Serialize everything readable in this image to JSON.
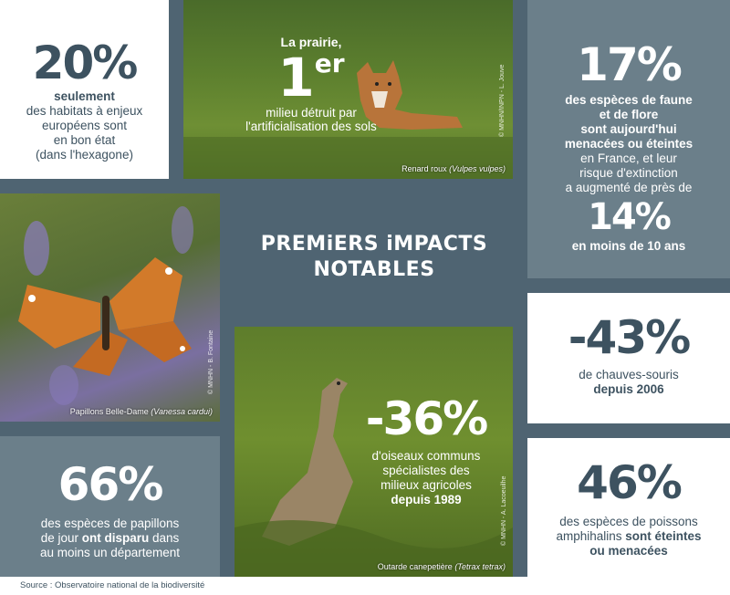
{
  "title": {
    "line1": "PREMiERS iMPACTS",
    "line2": "NOTABLES"
  },
  "source": "Source : Observatoire national de la biodiversité",
  "stat_habitats": {
    "value": "20%",
    "bold": "seulement",
    "l1": "des habitats à enjeux",
    "l2": "européens sont",
    "l3": "en bon état",
    "l4": "(dans l'hexagone)"
  },
  "prairie": {
    "l1": "La prairie,",
    "rank": "1",
    "rank_sup": "er",
    "l2": "milieu détruit par",
    "l3": "l'artificialisation des sols",
    "caption_text": "Renard roux ",
    "caption_latin": "(Vulpes vulpes)",
    "credit": "© MNHN/INPN - L. Jouve"
  },
  "stat_species": {
    "value": "17%",
    "l1": "des espèces de faune",
    "l2": "et de flore",
    "l3": "sont aujourd'hui",
    "l4": "menacées ou éteintes",
    "l5": "en France, et leur",
    "l6": "risque d'extinction",
    "l7": "a augmenté de près de",
    "value2": "14%",
    "l8": "en moins de 10 ans"
  },
  "butterfly_photo": {
    "caption_text": "Papillons Belle-Dame ",
    "caption_latin": "(Vanessa cardui)",
    "credit": "© MNHN - B. Fontaine"
  },
  "stat_bats": {
    "value": "-43%",
    "l1": "de chauves-souris",
    "bold": "depuis 2006"
  },
  "stat_birds": {
    "value": "-36%",
    "l1": "d'oiseaux communs",
    "l2": "spécialistes des",
    "l3": "milieux agricoles",
    "bold": "depuis 1989",
    "caption_text": "Outarde canepetière ",
    "caption_latin": "(Tetrax tetrax)",
    "credit": "© MNHN - A. Lacoeuilhe"
  },
  "stat_butterflies": {
    "value": "66%",
    "l1": "des espèces de papillons",
    "l2a": "de jour ",
    "l2b": "ont disparu",
    "l2c": " dans",
    "l3": "au moins un département"
  },
  "stat_fish": {
    "value": "46%",
    "l1": "des espèces de poissons",
    "l2a": "amphihalins ",
    "l2b": "sont éteintes",
    "l3": "ou menacées"
  },
  "colors": {
    "slate_dark": "#4f6472",
    "slate_light": "#6b7f8a",
    "text_dark": "#3d5260",
    "white": "#ffffff"
  }
}
